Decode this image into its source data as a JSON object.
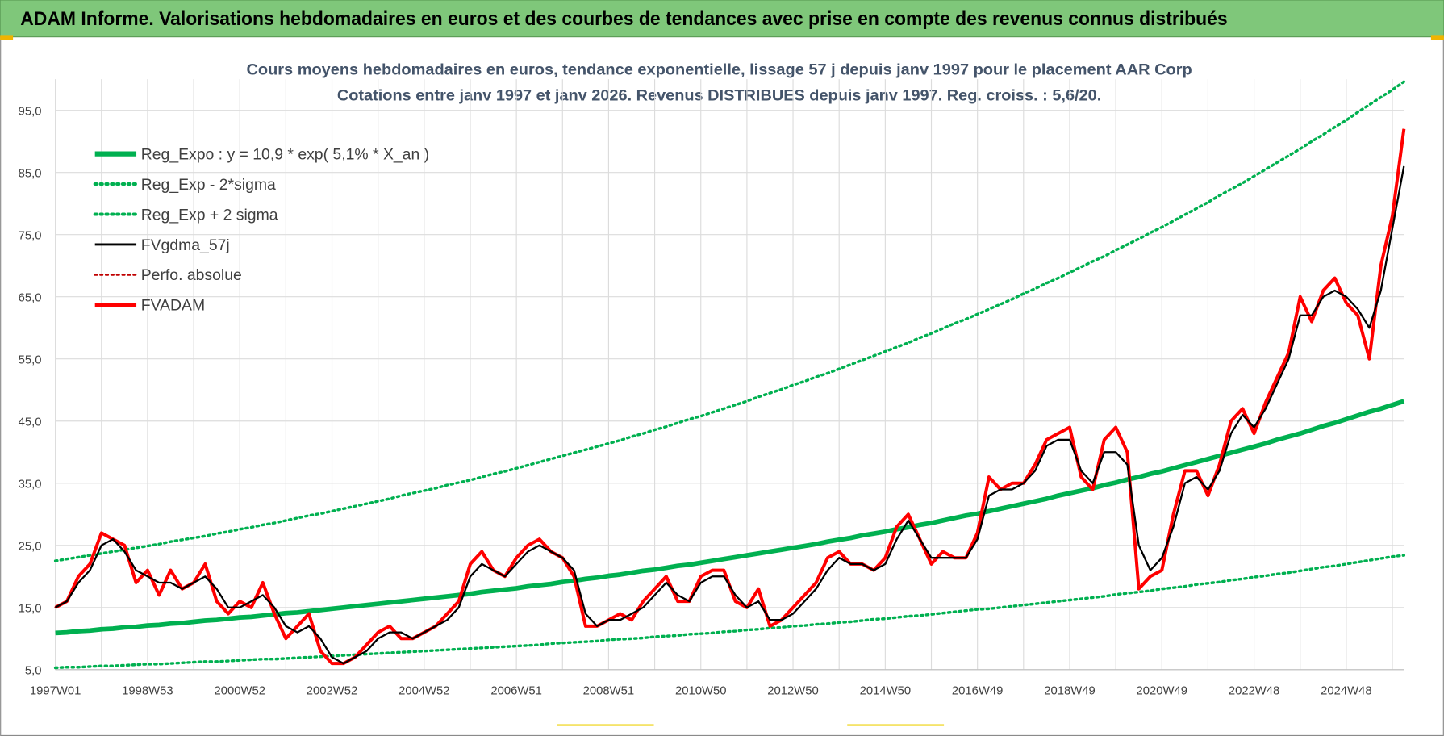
{
  "header": "ADAM Informe. Valorisations hebdomadaires en euros et des courbes de tendances avec prise en compte des revenus connus distribués",
  "chart_data": {
    "type": "line",
    "title": "Cours moyens hebdomadaires en euros, tendance exponentielle, lissage 57 j depuis janv 1997 pour le placement AAR Corp",
    "subtitle": "Cotations entre janv 1997 et janv 2026. Revenus DISTRIBUES depuis janv 1997. Reg. croiss. : 5,6/20.",
    "categories": [
      "1997W01",
      null,
      null,
      null,
      null,
      null,
      null,
      null,
      "1998W53",
      null,
      null,
      null,
      null,
      null,
      null,
      null,
      "2000W52",
      null,
      null,
      null,
      null,
      null,
      null,
      null,
      "2002W52",
      null,
      null,
      null,
      null,
      null,
      null,
      null,
      "2004W52",
      null,
      null,
      null,
      null,
      null,
      null,
      null,
      "2006W51",
      null,
      null,
      null,
      null,
      null,
      null,
      null,
      "2008W51",
      null,
      null,
      null,
      null,
      null,
      null,
      null,
      "2010W50",
      null,
      null,
      null,
      null,
      null,
      null,
      null,
      "2012W50",
      null,
      null,
      null,
      null,
      null,
      null,
      null,
      "2014W50",
      null,
      null,
      null,
      null,
      null,
      null,
      null,
      "2016W49",
      null,
      null,
      null,
      null,
      null,
      null,
      null,
      "2018W49",
      null,
      null,
      null,
      null,
      null,
      null,
      null,
      "2020W49",
      null,
      null,
      null,
      null,
      null,
      null,
      null,
      "2022W48",
      null,
      null,
      null,
      null,
      null,
      null,
      null,
      "2024W48",
      null,
      null,
      null,
      null,
      null
    ],
    "ylim": [
      5,
      100
    ],
    "yticks": [
      {
        "value": 5,
        "label": "5,0"
      },
      {
        "value": 15,
        "label": "15,0"
      },
      {
        "value": 25,
        "label": "25,0"
      },
      {
        "value": 35,
        "label": "35,0"
      },
      {
        "value": 45,
        "label": "45,0"
      },
      {
        "value": 55,
        "label": "55,0"
      },
      {
        "value": 65,
        "label": "65,0"
      },
      {
        "value": 75,
        "label": "75,0"
      },
      {
        "value": 85,
        "label": "85,0"
      },
      {
        "value": 95,
        "label": "95,0"
      }
    ],
    "grid": true,
    "legend": "upper left",
    "series": [
      {
        "name": "Reg_Expo : y = 10,9 * exp( 5,1% *  X_an )",
        "color": "#00b050",
        "style": "solid",
        "values": [
          10.9,
          11.0,
          11.2,
          11.3,
          11.5,
          11.6,
          11.8,
          11.9,
          12.1,
          12.2,
          12.4,
          12.5,
          12.7,
          12.9,
          13.0,
          13.2,
          13.4,
          13.5,
          13.7,
          13.9,
          14.1,
          14.2,
          14.4,
          14.6,
          14.8,
          15.0,
          15.2,
          15.4,
          15.6,
          15.8,
          16.0,
          16.2,
          16.4,
          16.6,
          16.8,
          17.0,
          17.2,
          17.5,
          17.7,
          17.9,
          18.1,
          18.4,
          18.6,
          18.8,
          19.1,
          19.3,
          19.6,
          19.8,
          20.1,
          20.3,
          20.6,
          20.9,
          21.1,
          21.4,
          21.7,
          21.9,
          22.2,
          22.5,
          22.8,
          23.1,
          23.4,
          23.7,
          24.0,
          24.3,
          24.6,
          24.9,
          25.2,
          25.6,
          25.9,
          26.2,
          26.6,
          26.9,
          27.2,
          27.6,
          27.9,
          28.3,
          28.6,
          29.0,
          29.4,
          29.8,
          30.1,
          30.5,
          30.9,
          31.3,
          31.7,
          32.1,
          32.5,
          33.0,
          33.4,
          33.8,
          34.2,
          34.7,
          35.1,
          35.6,
          36.0,
          36.5,
          36.9,
          37.4,
          37.9,
          38.4,
          38.9,
          39.4,
          39.9,
          40.4,
          40.9,
          41.4,
          42.0,
          42.5,
          43.0,
          43.6,
          44.2,
          44.7,
          45.3,
          45.9,
          46.5,
          47.0,
          47.6,
          48.2
        ]
      },
      {
        "name": "Reg_Exp - 2*sigma",
        "color": "#00b050",
        "style": "dotted",
        "values": [
          5.3,
          5.4,
          5.4,
          5.5,
          5.6,
          5.6,
          5.7,
          5.8,
          5.9,
          5.9,
          6.0,
          6.1,
          6.2,
          6.3,
          6.3,
          6.4,
          6.5,
          6.6,
          6.7,
          6.7,
          6.8,
          6.9,
          7.0,
          7.1,
          7.2,
          7.3,
          7.4,
          7.5,
          7.6,
          7.7,
          7.8,
          7.9,
          8.0,
          8.1,
          8.2,
          8.3,
          8.4,
          8.5,
          8.6,
          8.7,
          8.8,
          8.9,
          9.0,
          9.2,
          9.3,
          9.4,
          9.5,
          9.6,
          9.8,
          9.9,
          10.0,
          10.1,
          10.3,
          10.4,
          10.5,
          10.7,
          10.8,
          10.9,
          11.1,
          11.2,
          11.4,
          11.5,
          11.7,
          11.8,
          12.0,
          12.1,
          12.3,
          12.4,
          12.6,
          12.7,
          12.9,
          13.1,
          13.2,
          13.4,
          13.6,
          13.7,
          13.9,
          14.1,
          14.3,
          14.5,
          14.7,
          14.8,
          15.0,
          15.2,
          15.4,
          15.6,
          15.8,
          16.0,
          16.2,
          16.4,
          16.6,
          16.8,
          17.1,
          17.3,
          17.5,
          17.7,
          18.0,
          18.2,
          18.4,
          18.7,
          18.9,
          19.1,
          19.4,
          19.6,
          19.9,
          20.1,
          20.4,
          20.6,
          20.9,
          21.2,
          21.5,
          21.7,
          22.0,
          22.3,
          22.6,
          22.9,
          23.2,
          23.4
        ]
      },
      {
        "name": "Reg_Exp + 2 sigma",
        "color": "#00b050",
        "style": "dotted",
        "values": [
          22.5,
          22.8,
          23.1,
          23.4,
          23.7,
          24.0,
          24.3,
          24.6,
          24.9,
          25.2,
          25.6,
          25.9,
          26.2,
          26.5,
          26.9,
          27.2,
          27.6,
          27.9,
          28.3,
          28.6,
          29.0,
          29.4,
          29.8,
          30.1,
          30.5,
          30.9,
          31.3,
          31.7,
          32.1,
          32.5,
          33.0,
          33.4,
          33.8,
          34.2,
          34.7,
          35.1,
          35.5,
          36.0,
          36.5,
          36.9,
          37.4,
          37.9,
          38.4,
          38.9,
          39.4,
          39.9,
          40.4,
          40.9,
          41.4,
          41.9,
          42.5,
          43.0,
          43.6,
          44.1,
          44.7,
          45.3,
          45.8,
          46.4,
          47.0,
          47.6,
          48.2,
          48.9,
          49.5,
          50.1,
          50.8,
          51.4,
          52.1,
          52.7,
          53.4,
          54.1,
          54.8,
          55.5,
          56.2,
          56.9,
          57.6,
          58.4,
          59.1,
          59.9,
          60.7,
          61.4,
          62.2,
          63.0,
          63.8,
          64.6,
          65.5,
          66.3,
          67.2,
          68.0,
          68.9,
          69.8,
          70.7,
          71.5,
          72.5,
          73.4,
          74.3,
          75.3,
          76.2,
          77.2,
          78.2,
          79.2,
          80.2,
          81.3,
          82.3,
          83.3,
          84.4,
          85.5,
          86.6,
          87.7,
          88.8,
          90.0,
          91.1,
          92.3,
          93.4,
          94.7,
          95.9,
          97.1,
          98.3,
          99.6
        ]
      },
      {
        "name": "FVgdma_57j",
        "color": "#000000",
        "style": "solid",
        "values": [
          15,
          16,
          19,
          21,
          25,
          26,
          24,
          21,
          20,
          19,
          19,
          18,
          19,
          20,
          18,
          15,
          15,
          16,
          17,
          15,
          12,
          11,
          12,
          10,
          7,
          6,
          7,
          8,
          10,
          11,
          11,
          10,
          11,
          12,
          13,
          15,
          20,
          22,
          21,
          20,
          22,
          24,
          25,
          24,
          23,
          21,
          14,
          12,
          13,
          13,
          14,
          15,
          17,
          19,
          17,
          16,
          19,
          20,
          20,
          17,
          15,
          16,
          13,
          13,
          14,
          16,
          18,
          21,
          23,
          22,
          22,
          21,
          22,
          26,
          29,
          26,
          23,
          23,
          23,
          23,
          26,
          33,
          34,
          34,
          35,
          37,
          41,
          42,
          42,
          37,
          35,
          40,
          40,
          38,
          25,
          21,
          23,
          28,
          35,
          36,
          34,
          37,
          43,
          46,
          44,
          47,
          51,
          55,
          62,
          62,
          65,
          66,
          65,
          63,
          60,
          66,
          76,
          86
        ]
      },
      {
        "name": "Perfo. absolue",
        "color": "#c00000",
        "style": "dotted",
        "values": [
          15,
          16,
          20,
          22,
          27,
          26,
          25,
          19,
          21,
          17,
          21,
          18,
          19,
          22,
          16,
          14,
          16,
          15,
          19,
          14,
          10,
          12,
          14,
          8,
          6,
          6,
          7,
          9,
          11,
          12,
          10,
          10,
          11,
          12,
          14,
          16,
          22,
          24,
          21,
          20,
          23,
          25,
          26,
          24,
          23,
          20,
          12,
          12,
          13,
          14,
          13,
          16,
          18,
          20,
          16,
          16,
          20,
          21,
          21,
          16,
          15,
          18,
          12,
          13,
          15,
          17,
          19,
          23,
          24,
          22,
          22,
          21,
          23,
          28,
          30,
          26,
          22,
          24,
          23,
          23,
          27,
          36,
          34,
          35,
          35,
          38,
          42,
          43,
          44,
          36,
          34,
          42,
          44,
          40,
          18,
          20,
          21,
          30,
          37,
          37,
          33,
          38,
          45,
          47,
          43,
          48,
          52,
          56,
          65,
          61,
          66,
          68,
          64,
          62,
          55,
          70,
          78,
          92
        ]
      },
      {
        "name": "FVADAM",
        "color": "#ff0000",
        "style": "solid",
        "values": [
          15,
          16,
          20,
          22,
          27,
          26,
          25,
          19,
          21,
          17,
          21,
          18,
          19,
          22,
          16,
          14,
          16,
          15,
          19,
          14,
          10,
          12,
          14,
          8,
          6,
          6,
          7,
          9,
          11,
          12,
          10,
          10,
          11,
          12,
          14,
          16,
          22,
          24,
          21,
          20,
          23,
          25,
          26,
          24,
          23,
          20,
          12,
          12,
          13,
          14,
          13,
          16,
          18,
          20,
          16,
          16,
          20,
          21,
          21,
          16,
          15,
          18,
          12,
          13,
          15,
          17,
          19,
          23,
          24,
          22,
          22,
          21,
          23,
          28,
          30,
          26,
          22,
          24,
          23,
          23,
          27,
          36,
          34,
          35,
          35,
          38,
          42,
          43,
          44,
          36,
          34,
          42,
          44,
          40,
          18,
          20,
          21,
          30,
          37,
          37,
          33,
          38,
          45,
          47,
          43,
          48,
          52,
          56,
          65,
          61,
          66,
          68,
          64,
          62,
          55,
          70,
          78,
          92
        ]
      }
    ]
  }
}
